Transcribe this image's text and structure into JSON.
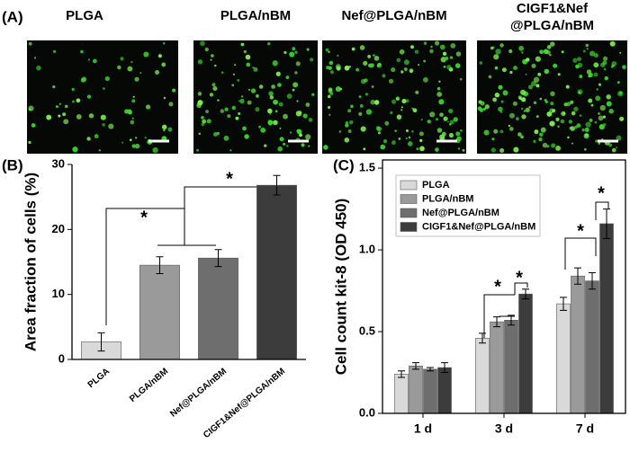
{
  "panel_a": {
    "label": "(A)",
    "images": [
      [
        "PLGA"
      ],
      [
        "PLGA/nBM"
      ],
      [
        "Nef@PLGA/nBM"
      ],
      [
        "CIGF1&Nef",
        "@PLGA/nBM"
      ]
    ]
  },
  "chart_data": [
    {
      "type": "bar",
      "panel_label": "(B)",
      "y_label": "Area fraction of cells (%)",
      "categories": [
        "PLGA",
        "PLGA/nBM",
        "Nef@PLGA/nBM",
        "CIGF1&Nef@PLGA/nBM"
      ],
      "values": [
        2.7,
        14.5,
        15.6,
        26.8
      ],
      "errors": [
        1.4,
        1.3,
        1.3,
        1.5
      ],
      "colors": [
        "#d9d9d9",
        "#9a9a9a",
        "#6e6e6e",
        "#3c3c3c"
      ],
      "ylim": [
        0,
        30
      ],
      "yticks": [
        0,
        10,
        20,
        30
      ],
      "annotations": [
        "*",
        "*"
      ]
    },
    {
      "type": "grouped-bar",
      "panel_label": "(C)",
      "y_label": "Cell count kit-8 (OD 450)",
      "categories": [
        "1 d",
        "3 d",
        "7 d"
      ],
      "series": [
        {
          "name": "PLGA",
          "color": "#d9d9d9",
          "values": [
            0.24,
            0.46,
            0.67
          ],
          "errors": [
            0.02,
            0.03,
            0.04
          ]
        },
        {
          "name": "PLGA/nBM",
          "color": "#9a9a9a",
          "values": [
            0.29,
            0.56,
            0.84
          ],
          "errors": [
            0.02,
            0.03,
            0.05
          ]
        },
        {
          "name": "Nef@PLGA/nBM",
          "color": "#6e6e6e",
          "values": [
            0.27,
            0.57,
            0.81
          ],
          "errors": [
            0.01,
            0.03,
            0.05
          ]
        },
        {
          "name": "CIGF1&Nef@PLGA/nBM",
          "color": "#3c3c3c",
          "values": [
            0.28,
            0.73,
            1.16
          ],
          "errors": [
            0.03,
            0.03,
            0.09
          ]
        }
      ],
      "ylim": [
        0,
        1.55
      ],
      "yticks": [
        {
          "value": 0,
          "label": "0.0"
        },
        0.5,
        {
          "value": 1,
          "label": "1.0"
        },
        1.5
      ],
      "legend": "upper-left",
      "annotations": [
        "*",
        "*",
        "*",
        "*"
      ]
    }
  ]
}
